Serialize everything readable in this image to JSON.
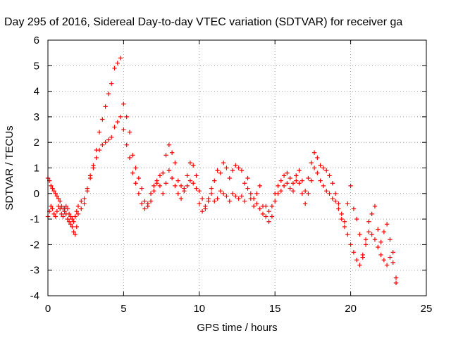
{
  "chart_data": {
    "type": "scatter",
    "title": "Day 295 of 2016, Sidereal Day-to-day VTEC variation (SDTVAR) for receiver ga",
    "xlabel": "GPS time / hours",
    "ylabel": "SDTVAR / TECUs",
    "xlim": [
      0,
      25
    ],
    "ylim": [
      -4,
      6
    ],
    "xticks": [
      0,
      5,
      10,
      15,
      20,
      25
    ],
    "yticks": [
      -4,
      -3,
      -2,
      -1,
      0,
      1,
      2,
      3,
      4,
      5,
      6
    ],
    "grid": true,
    "marker": "plus",
    "color": "#ff0000",
    "series": [
      {
        "name": "",
        "x": [
          0.0,
          0.1,
          0.2,
          0.3,
          0.4,
          0.5,
          0.6,
          0.7,
          0.8,
          0.9,
          1.0,
          1.1,
          1.2,
          1.3,
          1.4,
          1.5,
          1.6,
          1.7,
          1.8,
          1.9,
          2.0,
          2.2,
          2.4,
          2.6,
          2.8,
          3.0,
          3.2,
          3.4,
          3.6,
          3.8,
          4.0,
          4.2,
          4.4,
          4.6,
          4.8,
          5.0,
          5.2,
          5.4,
          5.6,
          5.8,
          6.0,
          6.2,
          6.4,
          6.6,
          6.8,
          7.0,
          7.2,
          7.4,
          7.6,
          7.8,
          8.0,
          8.2,
          8.4,
          8.6,
          8.8,
          9.0,
          9.2,
          9.4,
          9.6,
          9.8,
          10.0,
          10.2,
          10.4,
          10.6,
          10.8,
          11.0,
          11.2,
          11.4,
          11.6,
          11.8,
          12.0,
          12.2,
          12.4,
          12.6,
          12.8,
          13.0,
          13.2,
          13.4,
          13.6,
          13.8,
          14.0,
          14.2,
          14.4,
          14.6,
          14.8,
          15.0,
          15.2,
          15.4,
          15.6,
          15.8,
          16.0,
          16.2,
          16.4,
          16.6,
          16.8,
          17.0,
          17.2,
          17.4,
          17.6,
          17.8,
          18.0,
          18.2,
          18.4,
          18.6,
          18.8,
          19.0,
          19.2,
          19.4,
          19.6,
          19.8,
          20.0,
          20.2,
          20.4,
          20.6,
          20.8,
          21.0,
          21.2,
          21.4,
          21.6,
          21.8,
          22.0,
          22.2,
          22.4,
          22.6,
          22.8,
          23.0
        ],
        "y": [
          0.6,
          0.5,
          0.3,
          0.2,
          0.1,
          0.0,
          -0.1,
          -0.2,
          -0.3,
          -0.5,
          -0.6,
          -0.6,
          -0.8,
          -1.0,
          -1.1,
          -1.2,
          -1.3,
          -1.5,
          -1.6,
          -1.3,
          -0.8,
          -0.6,
          -0.4,
          0.1,
          0.6,
          1.1,
          1.7,
          2.4,
          2.9,
          3.4,
          3.9,
          4.3,
          4.9,
          5.1,
          5.3,
          3.5,
          3.0,
          2.4,
          1.5,
          1.0,
          0.6,
          0.2,
          -0.3,
          -0.5,
          -0.3,
          0.1,
          0.4,
          0.7,
          0.8,
          1.5,
          1.9,
          1.6,
          1.2,
          0.5,
          0.3,
          0.2,
          0.7,
          1.2,
          1.1,
          0.7,
          0.1,
          -0.2,
          -0.6,
          -0.3,
          0.2,
          0.5,
          0.9,
          0.8,
          1.2,
          1.0,
          0.6,
          0.9,
          1.1,
          1.0,
          0.9,
          0.4,
          0.6,
          0.0,
          -0.2,
          0.0,
          0.3,
          -0.5,
          -0.9,
          -1.1,
          -0.5,
          0.0,
          0.3,
          0.5,
          0.7,
          0.8,
          0.6,
          0.4,
          0.7,
          0.9,
          0.5,
          0.1,
          0.6,
          1.2,
          1.6,
          1.4,
          1.1,
          1.0,
          0.9,
          0.7,
          0.4,
          0.0,
          -0.4,
          -0.8,
          -1.1,
          -0.4,
          0.3,
          -0.6,
          -1.0,
          -1.6,
          -2.4,
          -2.0,
          -1.1,
          -0.8,
          -0.5,
          -1.4,
          -1.9,
          -1.5,
          -1.2,
          -1.8,
          -2.3,
          -3.5
        ]
      },
      {
        "name": "",
        "x": [
          0.0,
          0.1,
          0.2,
          0.3,
          0.4,
          0.5,
          0.6,
          0.7,
          0.8,
          0.9,
          1.0,
          1.1,
          1.2,
          1.3,
          1.4,
          1.5,
          1.6,
          1.7,
          1.8,
          1.9,
          2.0,
          2.2,
          2.4,
          2.6,
          2.8,
          3.0,
          3.2,
          3.4,
          3.6,
          3.8,
          4.0,
          4.2,
          4.4,
          4.6,
          4.8,
          5.0,
          5.2,
          5.4,
          5.6,
          5.8,
          6.0,
          6.2,
          6.4,
          6.6,
          6.8,
          7.0,
          7.2,
          7.4,
          7.6,
          7.8,
          8.0,
          8.2,
          8.4,
          8.6,
          8.8,
          9.0,
          9.2,
          9.4,
          9.6,
          9.8,
          10.0,
          10.2,
          10.4,
          10.6,
          10.8,
          11.0,
          11.2,
          11.4,
          11.6,
          11.8,
          12.0,
          12.2,
          12.4,
          12.6,
          12.8,
          13.0,
          13.2,
          13.4,
          13.6,
          13.8,
          14.0,
          14.2,
          14.4,
          14.6,
          14.8,
          15.0,
          15.2,
          15.4,
          15.6,
          15.8,
          16.0,
          16.2,
          16.4,
          16.6,
          16.8,
          17.0,
          17.2,
          17.4,
          17.6,
          17.8,
          18.0,
          18.2,
          18.4,
          18.6,
          18.8,
          19.0,
          19.2,
          19.4,
          19.6,
          19.8,
          20.0,
          20.2,
          20.4,
          20.6,
          20.8,
          21.0,
          21.2,
          21.4,
          21.6,
          21.8,
          22.0,
          22.2,
          22.4,
          22.6,
          22.8,
          23.0
        ],
        "y": [
          -0.9,
          -0.7,
          -0.5,
          -0.6,
          -0.8,
          -0.9,
          -0.7,
          -0.5,
          -0.6,
          -0.8,
          -0.9,
          -0.7,
          -0.5,
          -0.6,
          -0.8,
          -0.9,
          -1.0,
          -1.1,
          -0.9,
          -0.7,
          -0.5,
          -0.3,
          -0.2,
          0.2,
          0.7,
          1.0,
          1.4,
          1.7,
          1.9,
          2.0,
          2.1,
          2.2,
          2.6,
          2.8,
          3.0,
          2.5,
          1.9,
          1.4,
          0.8,
          0.4,
          0.0,
          -0.4,
          -0.6,
          -0.4,
          0.0,
          0.3,
          0.5,
          0.3,
          0.0,
          0.4,
          0.9,
          0.6,
          0.3,
          0.0,
          -0.2,
          0.1,
          0.3,
          0.5,
          0.4,
          0.2,
          -0.4,
          -0.7,
          -0.5,
          -0.2,
          0.0,
          -0.3,
          -0.2,
          0.1,
          0.0,
          -0.1,
          -0.3,
          0.0,
          -0.1,
          -0.2,
          -0.1,
          -0.3,
          0.2,
          -0.2,
          -0.5,
          -0.4,
          -0.6,
          -0.8,
          -0.5,
          -0.7,
          -0.9,
          -0.3,
          0.0,
          0.1,
          0.3,
          0.4,
          0.2,
          0.1,
          0.5,
          0.4,
          0.0,
          -0.4,
          0.0,
          0.5,
          1.0,
          0.8,
          0.5,
          0.3,
          0.1,
          0.0,
          -0.2,
          -0.3,
          -0.6,
          -1.0,
          -1.3,
          -1.6,
          -2.0,
          -2.3,
          -2.6,
          -2.8,
          -2.5,
          -1.8,
          -1.5,
          -1.6,
          -1.8,
          -2.1,
          -2.4,
          -2.6,
          -2.8,
          -2.5,
          -2.7,
          -3.3
        ]
      }
    ]
  }
}
